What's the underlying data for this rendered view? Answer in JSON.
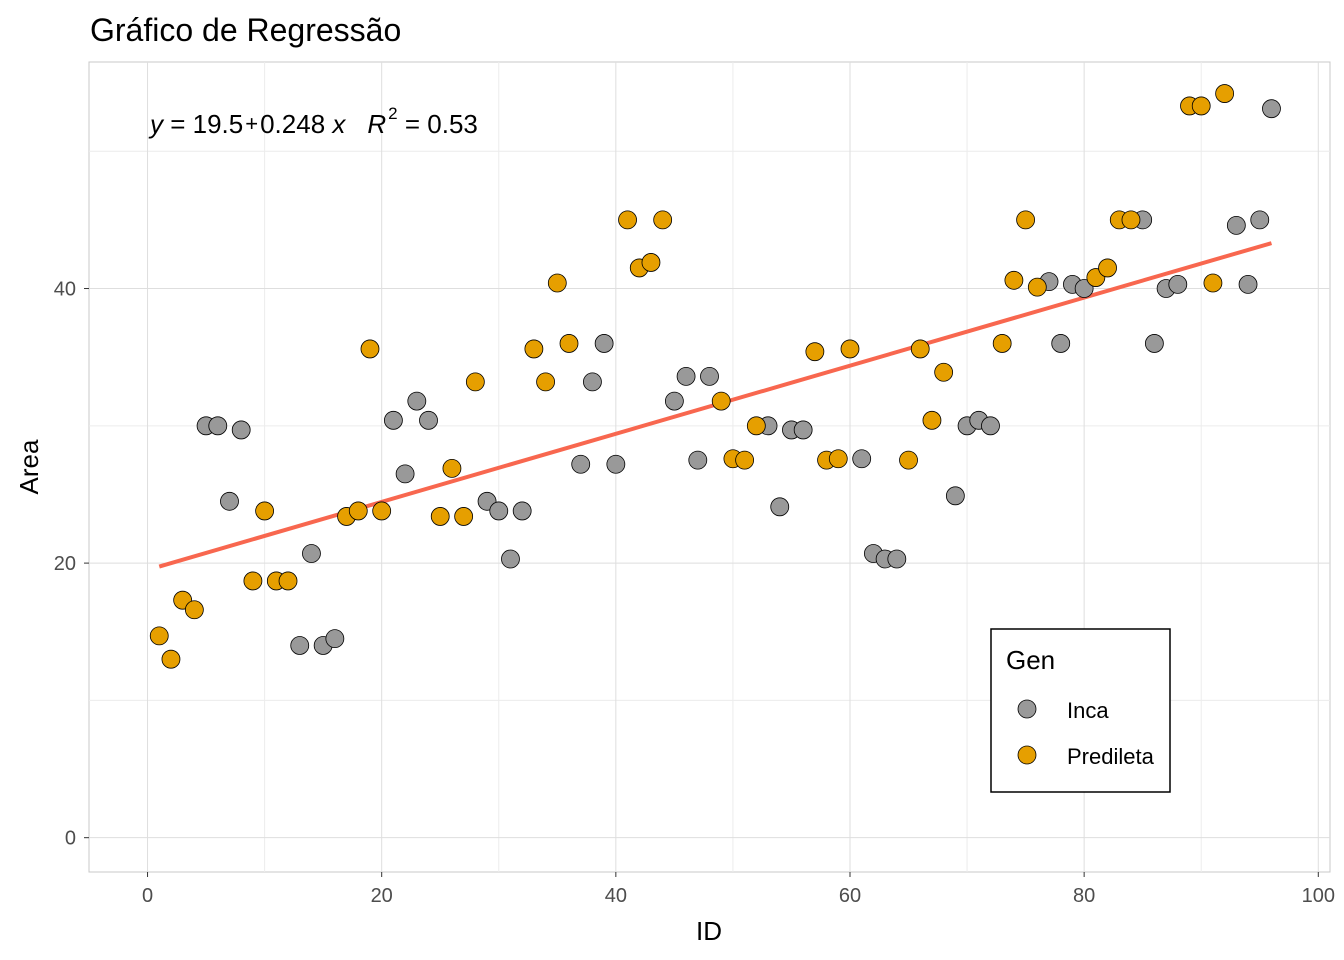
{
  "chart_data": {
    "type": "scatter",
    "title": "Gráfico de Regressão",
    "xlabel": "ID",
    "ylabel": "Area",
    "xlim": [
      -5,
      101
    ],
    "ylim": [
      -2.5,
      56.5
    ],
    "x_ticks": [
      0,
      20,
      40,
      60,
      80,
      100
    ],
    "y_ticks": [
      0,
      20,
      40
    ],
    "grid": true,
    "legend": {
      "title": "Gen",
      "position": "bottom-right",
      "entries": [
        {
          "name": "Inca",
          "color": "#999999"
        },
        {
          "name": "Predileta",
          "color": "#E69F00"
        }
      ]
    },
    "regression": {
      "intercept": 19.5,
      "slope": 0.248,
      "x_range": [
        1,
        96
      ],
      "color": "#F8674F",
      "equation_y": "y",
      "equation_eq": " = 19.5",
      "equation_plus": "+",
      "equation_rest": "0.248 ",
      "equation_x": "x",
      "equation_r": "R",
      "equation_r_sup": "2",
      "equation_r_val": " = 0.53"
    },
    "series": [
      {
        "name": "Inca",
        "color": "#999999",
        "points": [
          [
            5,
            30
          ],
          [
            6,
            30
          ],
          [
            7,
            24.5
          ],
          [
            8,
            29.7
          ],
          [
            13,
            14
          ],
          [
            14,
            20.7
          ],
          [
            15,
            14
          ],
          [
            16,
            14.5
          ],
          [
            21,
            30.4
          ],
          [
            22,
            26.5
          ],
          [
            23,
            31.8
          ],
          [
            24,
            30.4
          ],
          [
            29,
            24.5
          ],
          [
            30,
            23.8
          ],
          [
            31,
            20.3
          ],
          [
            32,
            23.8
          ],
          [
            37,
            27.2
          ],
          [
            38,
            33.2
          ],
          [
            39,
            36
          ],
          [
            40,
            27.2
          ],
          [
            45,
            31.8
          ],
          [
            46,
            33.6
          ],
          [
            47,
            27.5
          ],
          [
            48,
            33.6
          ],
          [
            53,
            30
          ],
          [
            54,
            24.1
          ],
          [
            55,
            29.7
          ],
          [
            56,
            29.7
          ],
          [
            61,
            27.6
          ],
          [
            62,
            20.7
          ],
          [
            63,
            20.3
          ],
          [
            64,
            20.3
          ],
          [
            69,
            24.9
          ],
          [
            70,
            30
          ],
          [
            71,
            30.4
          ],
          [
            72,
            30
          ],
          [
            77,
            40.5
          ],
          [
            78,
            36
          ],
          [
            79,
            40.3
          ],
          [
            80,
            40
          ],
          [
            85,
            45
          ],
          [
            86,
            36
          ],
          [
            87,
            40
          ],
          [
            88,
            40.3
          ],
          [
            93,
            44.6
          ],
          [
            94,
            40.3
          ],
          [
            95,
            45
          ],
          [
            96,
            53.1
          ]
        ]
      },
      {
        "name": "Predileta",
        "color": "#E69F00",
        "points": [
          [
            1,
            14.7
          ],
          [
            2,
            13
          ],
          [
            3,
            17.3
          ],
          [
            4,
            16.6
          ],
          [
            9,
            18.7
          ],
          [
            10,
            23.8
          ],
          [
            11,
            18.7
          ],
          [
            12,
            18.7
          ],
          [
            17,
            23.4
          ],
          [
            18,
            23.8
          ],
          [
            19,
            35.6
          ],
          [
            20,
            23.8
          ],
          [
            25,
            23.4
          ],
          [
            26,
            26.9
          ],
          [
            27,
            23.4
          ],
          [
            28,
            33.2
          ],
          [
            33,
            35.6
          ],
          [
            34,
            33.2
          ],
          [
            35,
            40.4
          ],
          [
            36,
            36
          ],
          [
            41,
            45
          ],
          [
            42,
            41.5
          ],
          [
            43,
            41.9
          ],
          [
            44,
            45
          ],
          [
            49,
            31.8
          ],
          [
            50,
            27.6
          ],
          [
            51,
            27.5
          ],
          [
            52,
            30
          ],
          [
            57,
            35.4
          ],
          [
            58,
            27.5
          ],
          [
            59,
            27.6
          ],
          [
            60,
            35.6
          ],
          [
            65,
            27.5
          ],
          [
            66,
            35.6
          ],
          [
            67,
            30.4
          ],
          [
            68,
            33.9
          ],
          [
            73,
            36
          ],
          [
            74,
            40.6
          ],
          [
            75,
            45
          ],
          [
            76,
            40.1
          ],
          [
            81,
            40.8
          ],
          [
            82,
            41.5
          ],
          [
            83,
            45
          ],
          [
            84,
            45
          ],
          [
            89,
            53.3
          ],
          [
            90,
            53.3
          ],
          [
            91,
            40.4
          ],
          [
            92,
            54.2
          ]
        ]
      }
    ]
  }
}
